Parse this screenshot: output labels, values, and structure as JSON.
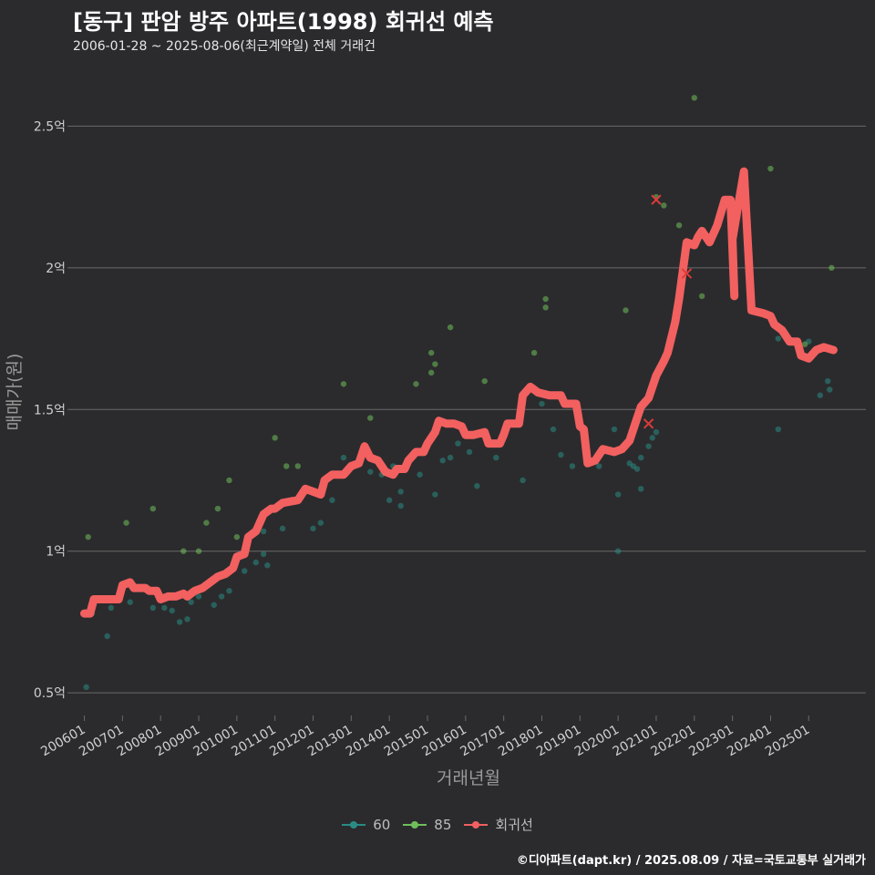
{
  "header": {
    "title": "[동구] 판암 방주 아파트(1998) 회귀선 예측",
    "subtitle": "2006-01-28 ~ 2025-08-06(최근계약일) 전체 거래건"
  },
  "footer": {
    "credit": "©디아파트(dapt.kr) / 2025.08.09 / 자료=국토교통부 실거래가"
  },
  "colors": {
    "background": "#2b2b2d",
    "grid": "#6a6a6a",
    "s60": "#2a8c84",
    "s85": "#6fbf5a",
    "regression": "#f26060"
  },
  "chart_data": {
    "type": "scatter",
    "xlabel": "거래년월",
    "ylabel": "매매가(원)",
    "x_unit": "year (decimal)",
    "xlim": [
      2005.7,
      2026.5
    ],
    "ylim": [
      0.42,
      2.72
    ],
    "y_ticks": [
      {
        "value": 0.5,
        "label": "0.5억"
      },
      {
        "value": 1.0,
        "label": "1억"
      },
      {
        "value": 1.5,
        "label": "1.5억"
      },
      {
        "value": 2.0,
        "label": "2억"
      },
      {
        "value": 2.5,
        "label": "2.5억"
      }
    ],
    "x_ticks": [
      {
        "value": 2006,
        "label": "200601"
      },
      {
        "value": 2007,
        "label": "200701"
      },
      {
        "value": 2008,
        "label": "200801"
      },
      {
        "value": 2009,
        "label": "200901"
      },
      {
        "value": 2010,
        "label": "201001"
      },
      {
        "value": 2011,
        "label": "201101"
      },
      {
        "value": 2012,
        "label": "201201"
      },
      {
        "value": 2013,
        "label": "201301"
      },
      {
        "value": 2014,
        "label": "201401"
      },
      {
        "value": 2015,
        "label": "201501"
      },
      {
        "value": 2016,
        "label": "201601"
      },
      {
        "value": 2017,
        "label": "201701"
      },
      {
        "value": 2018,
        "label": "201801"
      },
      {
        "value": 2019,
        "label": "201901"
      },
      {
        "value": 2020,
        "label": "202001"
      },
      {
        "value": 2021,
        "label": "202101"
      },
      {
        "value": 2022,
        "label": "202201"
      },
      {
        "value": 2023,
        "label": "202301"
      },
      {
        "value": 2024,
        "label": "202401"
      },
      {
        "value": 2025,
        "label": "202501"
      }
    ],
    "legend": {
      "placement": "bottom"
    },
    "series": [
      {
        "name": "60",
        "kind": "points",
        "points": [
          [
            2006.05,
            0.52
          ],
          [
            2006.2,
            0.78
          ],
          [
            2006.6,
            0.7
          ],
          [
            2006.7,
            0.8
          ],
          [
            2007.2,
            0.82
          ],
          [
            2007.8,
            0.8
          ],
          [
            2008.1,
            0.8
          ],
          [
            2008.3,
            0.79
          ],
          [
            2008.5,
            0.75
          ],
          [
            2008.7,
            0.76
          ],
          [
            2008.8,
            0.82
          ],
          [
            2009.0,
            0.84
          ],
          [
            2009.4,
            0.81
          ],
          [
            2009.6,
            0.84
          ],
          [
            2009.8,
            0.86
          ],
          [
            2010.2,
            0.93
          ],
          [
            2010.5,
            0.96
          ],
          [
            2010.7,
            0.99
          ],
          [
            2010.8,
            0.95
          ],
          [
            2010.7,
            1.07
          ],
          [
            2011.2,
            1.08
          ],
          [
            2012.0,
            1.08
          ],
          [
            2012.2,
            1.1
          ],
          [
            2012.5,
            1.18
          ],
          [
            2012.8,
            1.33
          ],
          [
            2013.2,
            1.31
          ],
          [
            2013.5,
            1.28
          ],
          [
            2013.8,
            1.27
          ],
          [
            2014.1,
            1.3
          ],
          [
            2014.0,
            1.18
          ],
          [
            2014.3,
            1.16
          ],
          [
            2014.3,
            1.21
          ],
          [
            2014.8,
            1.27
          ],
          [
            2015.2,
            1.2
          ],
          [
            2015.4,
            1.32
          ],
          [
            2015.6,
            1.33
          ],
          [
            2015.8,
            1.38
          ],
          [
            2016.1,
            1.35
          ],
          [
            2016.3,
            1.23
          ],
          [
            2016.8,
            1.33
          ],
          [
            2017.5,
            1.25
          ],
          [
            2018.0,
            1.52
          ],
          [
            2018.3,
            1.43
          ],
          [
            2018.5,
            1.34
          ],
          [
            2018.8,
            1.3
          ],
          [
            2019.2,
            1.32
          ],
          [
            2019.5,
            1.3
          ],
          [
            2019.9,
            1.43
          ],
          [
            2020.0,
            1.0
          ],
          [
            2020.0,
            1.2
          ],
          [
            2020.3,
            1.31
          ],
          [
            2020.4,
            1.3
          ],
          [
            2020.5,
            1.29
          ],
          [
            2020.6,
            1.22
          ],
          [
            2020.6,
            1.33
          ],
          [
            2020.8,
            1.37
          ],
          [
            2020.9,
            1.4
          ],
          [
            2021.0,
            1.42
          ],
          [
            2021.2,
            1.68
          ],
          [
            2024.2,
            1.75
          ],
          [
            2024.2,
            1.43
          ],
          [
            2025.0,
            1.74
          ],
          [
            2025.3,
            1.55
          ],
          [
            2025.5,
            1.6
          ],
          [
            2025.55,
            1.57
          ]
        ]
      },
      {
        "name": "85",
        "kind": "points",
        "points": [
          [
            2006.1,
            1.05
          ],
          [
            2007.1,
            1.1
          ],
          [
            2007.8,
            1.15
          ],
          [
            2008.6,
            1.0
          ],
          [
            2009.0,
            1.0
          ],
          [
            2009.2,
            1.1
          ],
          [
            2009.5,
            1.15
          ],
          [
            2009.8,
            1.25
          ],
          [
            2010.0,
            1.05
          ],
          [
            2011.0,
            1.4
          ],
          [
            2011.3,
            1.3
          ],
          [
            2011.6,
            1.3
          ],
          [
            2012.8,
            1.59
          ],
          [
            2013.5,
            1.47
          ],
          [
            2014.7,
            1.59
          ],
          [
            2015.1,
            1.7
          ],
          [
            2015.2,
            1.66
          ],
          [
            2015.1,
            1.63
          ],
          [
            2015.6,
            1.79
          ],
          [
            2016.5,
            1.6
          ],
          [
            2017.8,
            1.7
          ],
          [
            2018.1,
            1.89
          ],
          [
            2018.1,
            1.86
          ],
          [
            2020.2,
            1.85
          ],
          [
            2021.0,
            2.25
          ],
          [
            2021.2,
            2.22
          ],
          [
            2021.6,
            2.15
          ],
          [
            2022.0,
            2.6
          ],
          [
            2022.2,
            1.9
          ],
          [
            2024.0,
            2.35
          ],
          [
            2025.6,
            2.0
          ],
          [
            2024.9,
            1.73
          ]
        ]
      },
      {
        "name": "회귀선",
        "kind": "line",
        "points": [
          [
            2006.0,
            0.78
          ],
          [
            2006.15,
            0.78
          ],
          [
            2006.25,
            0.83
          ],
          [
            2006.9,
            0.83
          ],
          [
            2007.0,
            0.88
          ],
          [
            2007.2,
            0.89
          ],
          [
            2007.3,
            0.87
          ],
          [
            2007.6,
            0.87
          ],
          [
            2007.7,
            0.86
          ],
          [
            2007.9,
            0.86
          ],
          [
            2008.0,
            0.83
          ],
          [
            2008.2,
            0.84
          ],
          [
            2008.4,
            0.84
          ],
          [
            2008.6,
            0.85
          ],
          [
            2008.7,
            0.84
          ],
          [
            2008.9,
            0.86
          ],
          [
            2009.1,
            0.87
          ],
          [
            2009.3,
            0.89
          ],
          [
            2009.5,
            0.91
          ],
          [
            2009.7,
            0.92
          ],
          [
            2009.9,
            0.94
          ],
          [
            2010.0,
            0.98
          ],
          [
            2010.2,
            0.99
          ],
          [
            2010.3,
            1.05
          ],
          [
            2010.5,
            1.07
          ],
          [
            2010.7,
            1.13
          ],
          [
            2010.9,
            1.15
          ],
          [
            2011.0,
            1.15
          ],
          [
            2011.2,
            1.17
          ],
          [
            2011.6,
            1.18
          ],
          [
            2011.8,
            1.22
          ],
          [
            2012.0,
            1.21
          ],
          [
            2012.2,
            1.2
          ],
          [
            2012.3,
            1.25
          ],
          [
            2012.5,
            1.27
          ],
          [
            2012.8,
            1.27
          ],
          [
            2013.0,
            1.3
          ],
          [
            2013.2,
            1.31
          ],
          [
            2013.35,
            1.37
          ],
          [
            2013.5,
            1.33
          ],
          [
            2013.7,
            1.32
          ],
          [
            2013.9,
            1.28
          ],
          [
            2014.1,
            1.27
          ],
          [
            2014.2,
            1.29
          ],
          [
            2014.4,
            1.29
          ],
          [
            2014.5,
            1.32
          ],
          [
            2014.7,
            1.35
          ],
          [
            2014.9,
            1.35
          ],
          [
            2015.0,
            1.38
          ],
          [
            2015.2,
            1.42
          ],
          [
            2015.3,
            1.46
          ],
          [
            2015.5,
            1.45
          ],
          [
            2015.7,
            1.45
          ],
          [
            2015.9,
            1.44
          ],
          [
            2016.0,
            1.41
          ],
          [
            2016.2,
            1.41
          ],
          [
            2016.5,
            1.42
          ],
          [
            2016.6,
            1.38
          ],
          [
            2016.9,
            1.38
          ],
          [
            2017.0,
            1.41
          ],
          [
            2017.1,
            1.45
          ],
          [
            2017.4,
            1.45
          ],
          [
            2017.5,
            1.55
          ],
          [
            2017.7,
            1.58
          ],
          [
            2017.9,
            1.56
          ],
          [
            2018.2,
            1.55
          ],
          [
            2018.5,
            1.55
          ],
          [
            2018.6,
            1.52
          ],
          [
            2018.9,
            1.52
          ],
          [
            2019.0,
            1.44
          ],
          [
            2019.1,
            1.43
          ],
          [
            2019.2,
            1.31
          ],
          [
            2019.4,
            1.32
          ],
          [
            2019.6,
            1.36
          ],
          [
            2019.9,
            1.35
          ],
          [
            2020.1,
            1.36
          ],
          [
            2020.3,
            1.39
          ],
          [
            2020.5,
            1.47
          ],
          [
            2020.6,
            1.51
          ],
          [
            2020.8,
            1.54
          ],
          [
            2021.0,
            1.62
          ],
          [
            2021.2,
            1.67
          ],
          [
            2021.3,
            1.7
          ],
          [
            2021.5,
            1.81
          ],
          [
            2021.6,
            1.89
          ],
          [
            2021.8,
            2.09
          ],
          [
            2022.0,
            2.08
          ],
          [
            2022.1,
            2.11
          ],
          [
            2022.2,
            2.13
          ],
          [
            2022.4,
            2.09
          ],
          [
            2022.6,
            2.15
          ],
          [
            2022.8,
            2.24
          ],
          [
            2022.95,
            2.24
          ],
          [
            2023.05,
            1.9
          ],
          [
            2023.0,
            2.1
          ],
          [
            2023.3,
            2.34
          ],
          [
            2023.5,
            1.85
          ],
          [
            2023.8,
            1.84
          ],
          [
            2024.0,
            1.83
          ],
          [
            2024.1,
            1.8
          ],
          [
            2024.3,
            1.78
          ],
          [
            2024.5,
            1.74
          ],
          [
            2024.7,
            1.74
          ],
          [
            2024.8,
            1.69
          ],
          [
            2025.0,
            1.68
          ],
          [
            2025.2,
            1.71
          ],
          [
            2025.4,
            1.72
          ],
          [
            2025.65,
            1.71
          ]
        ]
      }
    ],
    "outliers": [
      [
        2021.0,
        2.24
      ],
      [
        2020.8,
        1.45
      ],
      [
        2021.8,
        1.98
      ]
    ]
  }
}
